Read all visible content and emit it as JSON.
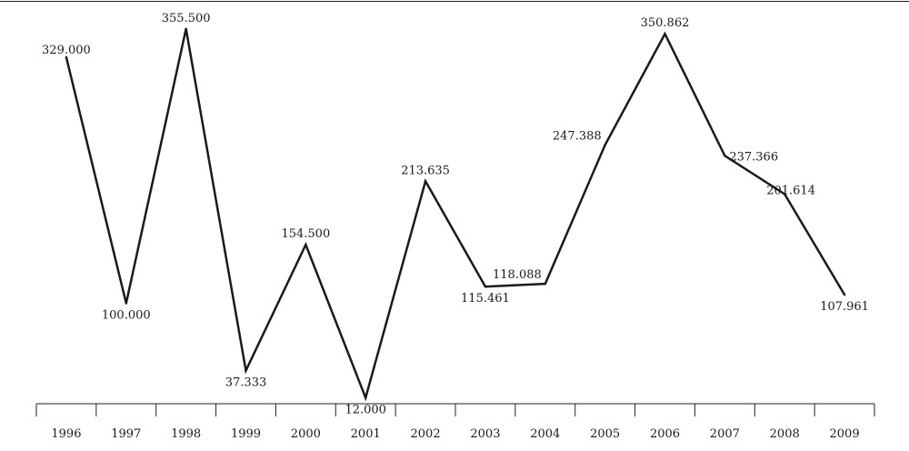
{
  "chart_data": {
    "type": "line",
    "categories": [
      "1996",
      "1997",
      "1998",
      "1999",
      "2000",
      "2001",
      "2002",
      "2003",
      "2004",
      "2005",
      "2006",
      "2007",
      "2008",
      "2009"
    ],
    "series": [
      {
        "values": [
          329.0,
          100.0,
          355.5,
          37.333,
          154.5,
          12.0,
          213.635,
          115.461,
          118.088,
          247.388,
          350.862,
          237.366,
          201.614,
          107.961
        ]
      }
    ],
    "data_labels": [
      "329.000",
      "100.000",
      "355.500",
      "37.333",
      "154.500",
      "12.000",
      "213.635",
      "115.461",
      "118.088",
      "247.388",
      "350.862",
      "237.366",
      "201.614",
      "107.961"
    ],
    "title": "",
    "xlabel": "",
    "ylabel": "",
    "ylim": [
      0,
      380
    ],
    "grid": false,
    "legend": "none",
    "colors": {
      "line": "#1a1a1a",
      "axis": "#222222",
      "text": "#1a1a1a"
    }
  }
}
